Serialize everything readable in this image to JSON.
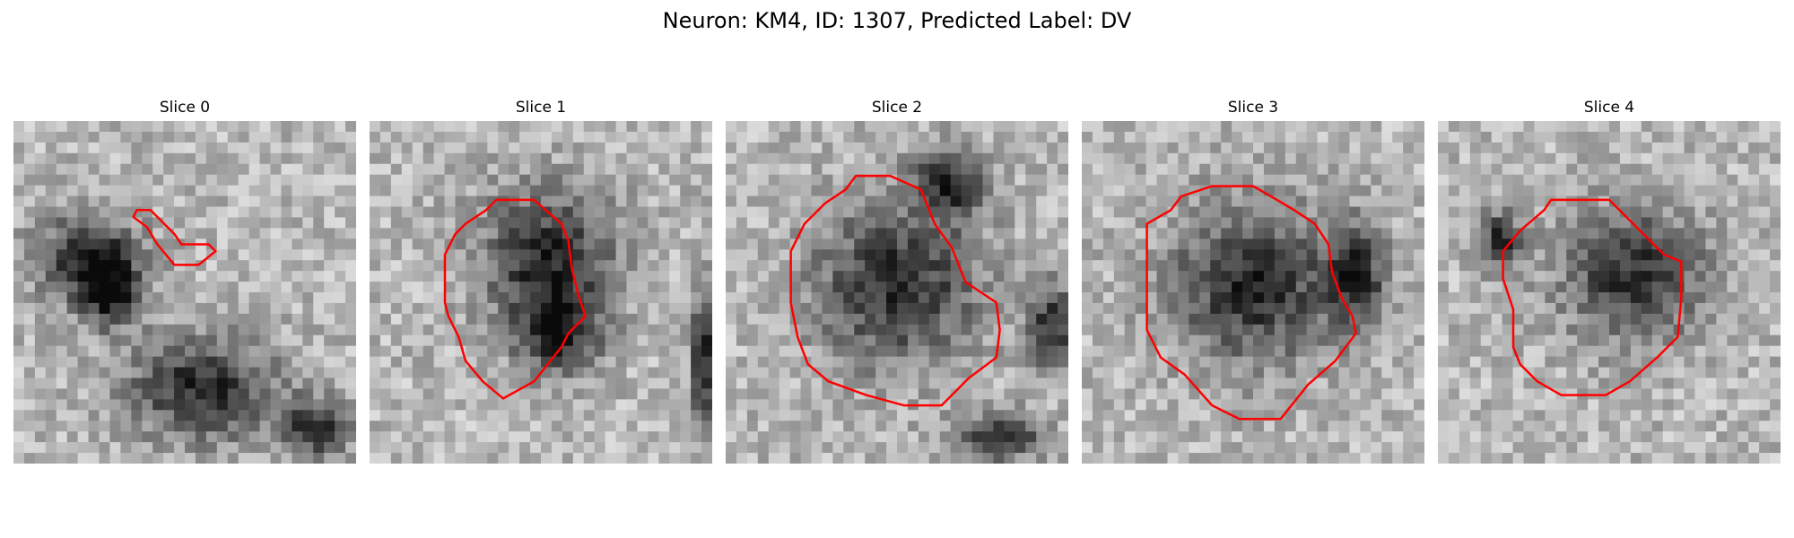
{
  "figure": {
    "title": "Neuron: KM4, ID: 1307, Predicted Label: DV"
  },
  "panels": [
    {
      "title": "Slice 0",
      "dark_regions": [
        [
          0.28,
          0.5,
          0.1,
          0.12
        ],
        [
          0.22,
          0.4,
          0.18,
          0.15
        ],
        [
          0.55,
          0.78,
          0.25,
          0.18
        ],
        [
          0.88,
          0.9,
          0.12,
          0.1
        ]
      ],
      "contour": [
        [
          0.36,
          0.26
        ],
        [
          0.4,
          0.26
        ],
        [
          0.47,
          0.33
        ],
        [
          0.49,
          0.36
        ],
        [
          0.57,
          0.36
        ],
        [
          0.59,
          0.38
        ],
        [
          0.54,
          0.42
        ],
        [
          0.47,
          0.42
        ],
        [
          0.42,
          0.36
        ],
        [
          0.39,
          0.31
        ],
        [
          0.35,
          0.28
        ]
      ]
    },
    {
      "title": "Slice 1",
      "dark_regions": [
        [
          0.52,
          0.4,
          0.23,
          0.24
        ],
        [
          0.55,
          0.62,
          0.14,
          0.14
        ],
        [
          0.98,
          0.7,
          0.05,
          0.25
        ]
      ],
      "contour": [
        [
          0.34,
          0.26
        ],
        [
          0.37,
          0.23
        ],
        [
          0.48,
          0.23
        ],
        [
          0.56,
          0.3
        ],
        [
          0.58,
          0.35
        ],
        [
          0.59,
          0.43
        ],
        [
          0.61,
          0.51
        ],
        [
          0.63,
          0.57
        ],
        [
          0.58,
          0.62
        ],
        [
          0.56,
          0.66
        ],
        [
          0.52,
          0.71
        ],
        [
          0.48,
          0.76
        ],
        [
          0.39,
          0.81
        ],
        [
          0.33,
          0.76
        ],
        [
          0.28,
          0.7
        ],
        [
          0.26,
          0.63
        ],
        [
          0.23,
          0.57
        ],
        [
          0.22,
          0.53
        ],
        [
          0.22,
          0.39
        ],
        [
          0.25,
          0.33
        ],
        [
          0.28,
          0.3
        ]
      ]
    },
    {
      "title": "Slice 2",
      "dark_regions": [
        [
          0.5,
          0.48,
          0.28,
          0.27
        ],
        [
          0.65,
          0.18,
          0.12,
          0.12
        ],
        [
          0.95,
          0.6,
          0.08,
          0.14
        ],
        [
          0.8,
          0.92,
          0.15,
          0.08
        ]
      ],
      "contour": [
        [
          0.35,
          0.2
        ],
        [
          0.38,
          0.16
        ],
        [
          0.48,
          0.16
        ],
        [
          0.57,
          0.2
        ],
        [
          0.61,
          0.3
        ],
        [
          0.66,
          0.37
        ],
        [
          0.7,
          0.47
        ],
        [
          0.79,
          0.53
        ],
        [
          0.8,
          0.61
        ],
        [
          0.79,
          0.69
        ],
        [
          0.71,
          0.75
        ],
        [
          0.63,
          0.83
        ],
        [
          0.52,
          0.83
        ],
        [
          0.41,
          0.8
        ],
        [
          0.3,
          0.76
        ],
        [
          0.24,
          0.71
        ],
        [
          0.21,
          0.63
        ],
        [
          0.19,
          0.53
        ],
        [
          0.19,
          0.38
        ],
        [
          0.23,
          0.3
        ],
        [
          0.29,
          0.24
        ]
      ]
    },
    {
      "title": "Slice 3",
      "dark_regions": [
        [
          0.5,
          0.48,
          0.28,
          0.27
        ],
        [
          0.8,
          0.45,
          0.1,
          0.18
        ]
      ],
      "contour": [
        [
          0.26,
          0.26
        ],
        [
          0.29,
          0.22
        ],
        [
          0.38,
          0.19
        ],
        [
          0.5,
          0.19
        ],
        [
          0.57,
          0.23
        ],
        [
          0.62,
          0.26
        ],
        [
          0.68,
          0.3
        ],
        [
          0.72,
          0.36
        ],
        [
          0.73,
          0.44
        ],
        [
          0.76,
          0.52
        ],
        [
          0.79,
          0.57
        ],
        [
          0.8,
          0.62
        ],
        [
          0.74,
          0.7
        ],
        [
          0.66,
          0.77
        ],
        [
          0.58,
          0.87
        ],
        [
          0.46,
          0.87
        ],
        [
          0.38,
          0.83
        ],
        [
          0.3,
          0.74
        ],
        [
          0.23,
          0.69
        ],
        [
          0.19,
          0.61
        ],
        [
          0.19,
          0.3
        ]
      ]
    },
    {
      "title": "Slice 4",
      "dark_regions": [
        [
          0.57,
          0.45,
          0.24,
          0.22
        ],
        [
          0.18,
          0.35,
          0.08,
          0.1
        ]
      ],
      "contour": [
        [
          0.31,
          0.26
        ],
        [
          0.33,
          0.23
        ],
        [
          0.43,
          0.23
        ],
        [
          0.5,
          0.23
        ],
        [
          0.56,
          0.29
        ],
        [
          0.6,
          0.33
        ],
        [
          0.66,
          0.39
        ],
        [
          0.71,
          0.41
        ],
        [
          0.71,
          0.52
        ],
        [
          0.7,
          0.63
        ],
        [
          0.64,
          0.69
        ],
        [
          0.56,
          0.76
        ],
        [
          0.49,
          0.8
        ],
        [
          0.36,
          0.8
        ],
        [
          0.29,
          0.76
        ],
        [
          0.24,
          0.71
        ],
        [
          0.22,
          0.66
        ],
        [
          0.22,
          0.55
        ],
        [
          0.19,
          0.46
        ],
        [
          0.19,
          0.38
        ],
        [
          0.24,
          0.32
        ]
      ]
    }
  ]
}
